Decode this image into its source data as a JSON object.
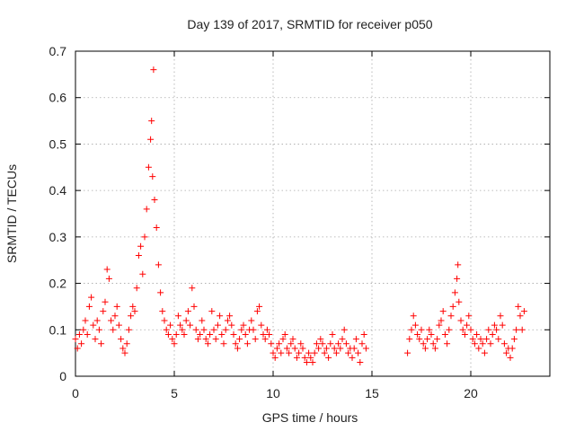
{
  "chart_data": {
    "type": "scatter",
    "title": "Day 139 of 2017, SRMTID for receiver p050",
    "xlabel": "GPS time / hours",
    "ylabel": "SRMTID / TECUs",
    "xlim": [
      0,
      24
    ],
    "ylim": [
      0,
      0.7
    ],
    "xticks": [
      0,
      5,
      10,
      15,
      20
    ],
    "yticks": [
      0,
      0.1,
      0.2,
      0.3,
      0.4,
      0.5,
      0.6,
      0.7
    ],
    "grid": true,
    "legend": "none",
    "series": [
      {
        "name": "SRMTID",
        "color": "#ff0000",
        "marker": "+",
        "points": [
          [
            0.0,
            0.08
          ],
          [
            0.1,
            0.06
          ],
          [
            0.2,
            0.09
          ],
          [
            0.3,
            0.07
          ],
          [
            0.4,
            0.1
          ],
          [
            0.5,
            0.12
          ],
          [
            0.6,
            0.09
          ],
          [
            0.7,
            0.15
          ],
          [
            0.8,
            0.17
          ],
          [
            0.9,
            0.11
          ],
          [
            1.0,
            0.08
          ],
          [
            1.1,
            0.12
          ],
          [
            1.2,
            0.1
          ],
          [
            1.3,
            0.07
          ],
          [
            1.4,
            0.14
          ],
          [
            1.5,
            0.16
          ],
          [
            1.6,
            0.23
          ],
          [
            1.7,
            0.21
          ],
          [
            1.8,
            0.12
          ],
          [
            1.9,
            0.1
          ],
          [
            2.0,
            0.13
          ],
          [
            2.1,
            0.15
          ],
          [
            2.2,
            0.11
          ],
          [
            2.3,
            0.08
          ],
          [
            2.4,
            0.06
          ],
          [
            2.5,
            0.05
          ],
          [
            2.6,
            0.07
          ],
          [
            2.7,
            0.1
          ],
          [
            2.8,
            0.13
          ],
          [
            2.9,
            0.15
          ],
          [
            3.0,
            0.14
          ],
          [
            3.1,
            0.19
          ],
          [
            3.2,
            0.26
          ],
          [
            3.3,
            0.28
          ],
          [
            3.4,
            0.22
          ],
          [
            3.5,
            0.3
          ],
          [
            3.6,
            0.36
          ],
          [
            3.7,
            0.45
          ],
          [
            3.8,
            0.51
          ],
          [
            3.85,
            0.55
          ],
          [
            3.9,
            0.43
          ],
          [
            3.95,
            0.66
          ],
          [
            4.0,
            0.38
          ],
          [
            4.1,
            0.32
          ],
          [
            4.2,
            0.24
          ],
          [
            4.3,
            0.18
          ],
          [
            4.4,
            0.14
          ],
          [
            4.5,
            0.12
          ],
          [
            4.6,
            0.1
          ],
          [
            4.7,
            0.09
          ],
          [
            4.8,
            0.11
          ],
          [
            4.9,
            0.08
          ],
          [
            5.0,
            0.07
          ],
          [
            5.1,
            0.09
          ],
          [
            5.2,
            0.13
          ],
          [
            5.3,
            0.11
          ],
          [
            5.4,
            0.1
          ],
          [
            5.5,
            0.09
          ],
          [
            5.6,
            0.12
          ],
          [
            5.7,
            0.14
          ],
          [
            5.8,
            0.11
          ],
          [
            5.9,
            0.19
          ],
          [
            6.0,
            0.15
          ],
          [
            6.1,
            0.1
          ],
          [
            6.2,
            0.08
          ],
          [
            6.3,
            0.09
          ],
          [
            6.4,
            0.12
          ],
          [
            6.5,
            0.1
          ],
          [
            6.6,
            0.08
          ],
          [
            6.7,
            0.07
          ],
          [
            6.8,
            0.09
          ],
          [
            6.9,
            0.14
          ],
          [
            7.0,
            0.1
          ],
          [
            7.1,
            0.08
          ],
          [
            7.2,
            0.11
          ],
          [
            7.3,
            0.13
          ],
          [
            7.4,
            0.09
          ],
          [
            7.5,
            0.07
          ],
          [
            7.6,
            0.1
          ],
          [
            7.7,
            0.12
          ],
          [
            7.8,
            0.13
          ],
          [
            7.9,
            0.11
          ],
          [
            8.0,
            0.09
          ],
          [
            8.1,
            0.07
          ],
          [
            8.2,
            0.06
          ],
          [
            8.3,
            0.08
          ],
          [
            8.4,
            0.1
          ],
          [
            8.5,
            0.11
          ],
          [
            8.6,
            0.09
          ],
          [
            8.7,
            0.07
          ],
          [
            8.8,
            0.1
          ],
          [
            8.9,
            0.12
          ],
          [
            9.0,
            0.1
          ],
          [
            9.1,
            0.08
          ],
          [
            9.2,
            0.14
          ],
          [
            9.3,
            0.15
          ],
          [
            9.4,
            0.11
          ],
          [
            9.5,
            0.09
          ],
          [
            9.6,
            0.08
          ],
          [
            9.7,
            0.1
          ],
          [
            9.8,
            0.09
          ],
          [
            9.9,
            0.07
          ],
          [
            10.0,
            0.05
          ],
          [
            10.1,
            0.04
          ],
          [
            10.2,
            0.06
          ],
          [
            10.3,
            0.07
          ],
          [
            10.4,
            0.05
          ],
          [
            10.5,
            0.08
          ],
          [
            10.6,
            0.09
          ],
          [
            10.7,
            0.06
          ],
          [
            10.8,
            0.05
          ],
          [
            10.9,
            0.07
          ],
          [
            11.0,
            0.08
          ],
          [
            11.1,
            0.06
          ],
          [
            11.2,
            0.04
          ],
          [
            11.3,
            0.05
          ],
          [
            11.4,
            0.07
          ],
          [
            11.5,
            0.06
          ],
          [
            11.6,
            0.04
          ],
          [
            11.7,
            0.03
          ],
          [
            11.8,
            0.05
          ],
          [
            11.9,
            0.04
          ],
          [
            12.0,
            0.03
          ],
          [
            12.1,
            0.05
          ],
          [
            12.2,
            0.07
          ],
          [
            12.3,
            0.06
          ],
          [
            12.4,
            0.08
          ],
          [
            12.5,
            0.07
          ],
          [
            12.6,
            0.05
          ],
          [
            12.7,
            0.06
          ],
          [
            12.8,
            0.04
          ],
          [
            12.9,
            0.07
          ],
          [
            13.0,
            0.09
          ],
          [
            13.1,
            0.06
          ],
          [
            13.2,
            0.05
          ],
          [
            13.3,
            0.07
          ],
          [
            13.4,
            0.06
          ],
          [
            13.5,
            0.08
          ],
          [
            13.6,
            0.1
          ],
          [
            13.7,
            0.07
          ],
          [
            13.8,
            0.05
          ],
          [
            13.9,
            0.06
          ],
          [
            14.0,
            0.04
          ],
          [
            14.1,
            0.06
          ],
          [
            14.2,
            0.08
          ],
          [
            14.3,
            0.05
          ],
          [
            14.4,
            0.03
          ],
          [
            14.5,
            0.07
          ],
          [
            14.6,
            0.09
          ],
          [
            14.7,
            0.06
          ],
          [
            16.8,
            0.05
          ],
          [
            16.9,
            0.08
          ],
          [
            17.0,
            0.1
          ],
          [
            17.1,
            0.13
          ],
          [
            17.2,
            0.11
          ],
          [
            17.3,
            0.09
          ],
          [
            17.4,
            0.08
          ],
          [
            17.5,
            0.1
          ],
          [
            17.6,
            0.07
          ],
          [
            17.7,
            0.06
          ],
          [
            17.8,
            0.08
          ],
          [
            17.9,
            0.1
          ],
          [
            18.0,
            0.09
          ],
          [
            18.1,
            0.07
          ],
          [
            18.2,
            0.06
          ],
          [
            18.3,
            0.08
          ],
          [
            18.4,
            0.11
          ],
          [
            18.5,
            0.12
          ],
          [
            18.6,
            0.14
          ],
          [
            18.7,
            0.09
          ],
          [
            18.8,
            0.07
          ],
          [
            18.9,
            0.1
          ],
          [
            19.0,
            0.13
          ],
          [
            19.1,
            0.15
          ],
          [
            19.2,
            0.18
          ],
          [
            19.3,
            0.21
          ],
          [
            19.35,
            0.24
          ],
          [
            19.4,
            0.16
          ],
          [
            19.5,
            0.12
          ],
          [
            19.6,
            0.1
          ],
          [
            19.7,
            0.09
          ],
          [
            19.8,
            0.11
          ],
          [
            19.9,
            0.13
          ],
          [
            20.0,
            0.1
          ],
          [
            20.1,
            0.08
          ],
          [
            20.2,
            0.07
          ],
          [
            20.3,
            0.09
          ],
          [
            20.4,
            0.06
          ],
          [
            20.5,
            0.08
          ],
          [
            20.6,
            0.07
          ],
          [
            20.7,
            0.05
          ],
          [
            20.8,
            0.08
          ],
          [
            20.9,
            0.1
          ],
          [
            21.0,
            0.07
          ],
          [
            21.1,
            0.09
          ],
          [
            21.2,
            0.11
          ],
          [
            21.3,
            0.1
          ],
          [
            21.4,
            0.08
          ],
          [
            21.5,
            0.13
          ],
          [
            21.6,
            0.11
          ],
          [
            21.7,
            0.07
          ],
          [
            21.8,
            0.05
          ],
          [
            21.9,
            0.06
          ],
          [
            22.0,
            0.04
          ],
          [
            22.1,
            0.06
          ],
          [
            22.2,
            0.08
          ],
          [
            22.3,
            0.1
          ],
          [
            22.4,
            0.15
          ],
          [
            22.5,
            0.13
          ],
          [
            22.6,
            0.1
          ],
          [
            22.7,
            0.14
          ]
        ]
      }
    ]
  }
}
